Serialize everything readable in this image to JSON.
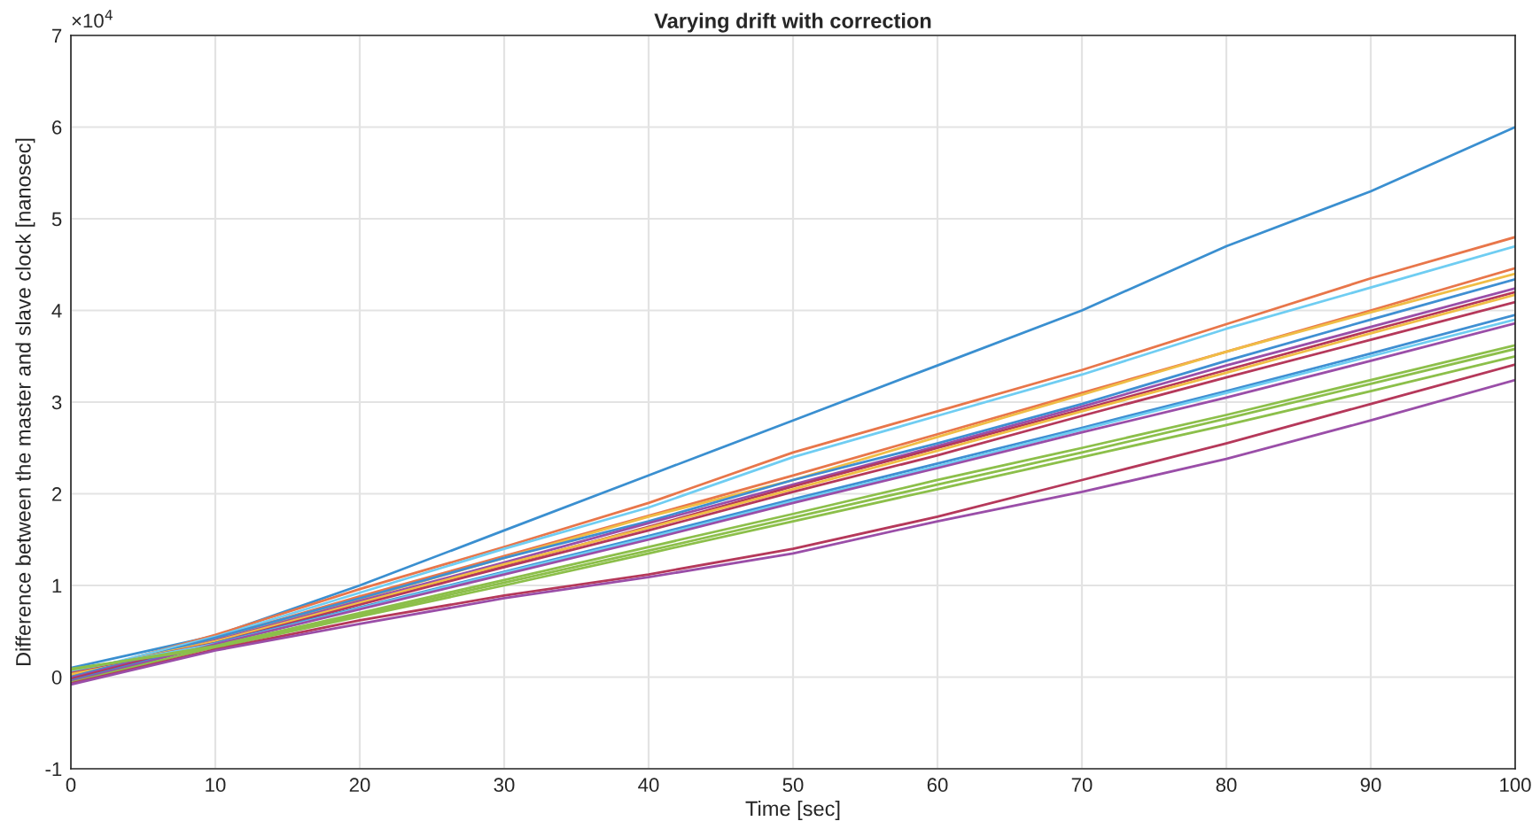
{
  "chart_data": {
    "type": "line",
    "title": "Varying drift with correction",
    "xlabel": "Time [sec]",
    "ylabel": "Difference between the master and slave clock [nanosec]",
    "annotations": [
      "×10$^{4}$"
    ],
    "x": [
      0,
      10,
      20,
      30,
      40,
      50,
      60,
      70,
      80,
      90,
      100
    ],
    "xlim": [
      0,
      100
    ],
    "xticks": [
      0,
      10,
      20,
      30,
      40,
      50,
      60,
      70,
      80,
      90,
      100
    ],
    "ylim": [
      -1,
      7
    ],
    "yticks": [
      -1,
      0,
      1,
      2,
      3,
      4,
      5,
      6,
      7
    ],
    "grid": true,
    "marker": "none",
    "line_style": "solid",
    "series": [
      {
        "color": "#3a8fd0",
        "values": [
          0.1,
          0.45,
          1.0,
          1.6,
          2.2,
          2.8,
          3.4,
          4.0,
          4.7,
          5.3,
          6.0
        ]
      },
      {
        "color": "#e8764a",
        "values": [
          0.02,
          0.46,
          0.96,
          1.42,
          1.9,
          2.45,
          2.9,
          3.35,
          3.85,
          4.35,
          4.8
        ]
      },
      {
        "color": "#6fcdf2",
        "values": [
          0.04,
          0.44,
          0.92,
          1.4,
          1.85,
          2.4,
          2.85,
          3.3,
          3.8,
          4.25,
          4.7
        ]
      },
      {
        "color": "#e8764a",
        "values": [
          0.01,
          0.42,
          0.88,
          1.32,
          1.76,
          2.2,
          2.65,
          3.1,
          3.55,
          4.0,
          4.46
        ]
      },
      {
        "color": "#f0bd45",
        "values": [
          0.03,
          0.4,
          0.85,
          1.3,
          1.75,
          2.15,
          2.62,
          3.08,
          3.55,
          3.98,
          4.4
        ]
      },
      {
        "color": "#3f8fd2",
        "values": [
          0.0,
          0.43,
          0.86,
          1.3,
          1.7,
          2.15,
          2.55,
          2.98,
          3.45,
          3.9,
          4.34
        ]
      },
      {
        "color": "#9a4ea8",
        "values": [
          -0.01,
          0.4,
          0.83,
          1.25,
          1.68,
          2.1,
          2.52,
          2.95,
          3.4,
          3.82,
          4.24
        ]
      },
      {
        "color": "#b5385a",
        "values": [
          -0.02,
          0.38,
          0.8,
          1.22,
          1.64,
          2.08,
          2.5,
          2.92,
          3.35,
          3.78,
          4.2
        ]
      },
      {
        "color": "#f0bd45",
        "values": [
          0.05,
          0.39,
          0.81,
          1.23,
          1.63,
          2.05,
          2.47,
          2.9,
          3.32,
          3.75,
          4.17
        ]
      },
      {
        "color": "#b5385a",
        "values": [
          0.06,
          0.37,
          0.79,
          1.2,
          1.6,
          2.02,
          2.42,
          2.85,
          3.27,
          3.68,
          4.09
        ]
      },
      {
        "color": "#3f8fd2",
        "values": [
          -0.04,
          0.37,
          0.76,
          1.15,
          1.54,
          1.94,
          2.33,
          2.72,
          3.12,
          3.53,
          3.95
        ]
      },
      {
        "color": "#6fcdf2",
        "values": [
          0.07,
          0.36,
          0.75,
          1.14,
          1.52,
          1.92,
          2.3,
          2.7,
          3.1,
          3.5,
          3.9
        ]
      },
      {
        "color": "#9a4ea8",
        "values": [
          -0.05,
          0.36,
          0.74,
          1.12,
          1.5,
          1.9,
          2.28,
          2.67,
          3.05,
          3.45,
          3.86
        ]
      },
      {
        "color": "#8cbf4a",
        "values": [
          0.08,
          0.34,
          0.7,
          1.06,
          1.42,
          1.78,
          2.15,
          2.5,
          2.86,
          3.24,
          3.62
        ]
      },
      {
        "color": "#8cbf4a",
        "values": [
          -0.06,
          0.33,
          0.68,
          1.03,
          1.38,
          1.74,
          2.1,
          2.45,
          2.82,
          3.2,
          3.58
        ]
      },
      {
        "color": "#8cbf4a",
        "values": [
          0.09,
          0.32,
          0.66,
          1.0,
          1.35,
          1.7,
          2.05,
          2.4,
          2.75,
          3.12,
          3.5
        ]
      },
      {
        "color": "#b5385a",
        "values": [
          -0.07,
          0.3,
          0.62,
          0.89,
          1.12,
          1.4,
          1.75,
          2.15,
          2.55,
          2.98,
          3.41
        ]
      },
      {
        "color": "#9a4ea8",
        "values": [
          -0.08,
          0.29,
          0.58,
          0.86,
          1.09,
          1.35,
          1.7,
          2.02,
          2.38,
          2.8,
          3.24
        ]
      }
    ]
  }
}
